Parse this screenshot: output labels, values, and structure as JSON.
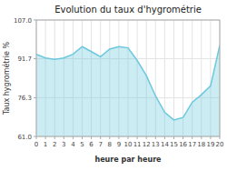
{
  "chart_data": {
    "type": "area",
    "title": "Evolution du taux d'hygrométrie",
    "xlabel": "heure par heure",
    "ylabel": "Taux hygrométrie %",
    "x": [
      0,
      1,
      2,
      3,
      4,
      5,
      6,
      7,
      8,
      9,
      10,
      11,
      12,
      13,
      14,
      15,
      16,
      17,
      18,
      19,
      20
    ],
    "values": [
      93.5,
      92.0,
      91.5,
      92.0,
      93.5,
      96.5,
      94.5,
      92.5,
      95.5,
      96.5,
      96.0,
      91.0,
      85.0,
      77.0,
      70.5,
      67.5,
      68.5,
      74.5,
      77.5,
      81.0,
      97.0
    ],
    "color": "#6bc8dd",
    "xlim": [
      0,
      20
    ],
    "xticks": [
      0,
      1,
      2,
      3,
      4,
      5,
      6,
      7,
      8,
      9,
      10,
      11,
      12,
      13,
      14,
      15,
      16,
      17,
      18,
      19,
      20
    ],
    "ylim": [
      61.0,
      107.0
    ],
    "yticks": [
      {
        "value": 61.0,
        "label": "61.0"
      },
      76.3,
      91.7,
      {
        "value": 107.0,
        "label": "107.0"
      }
    ],
    "grid": true
  }
}
